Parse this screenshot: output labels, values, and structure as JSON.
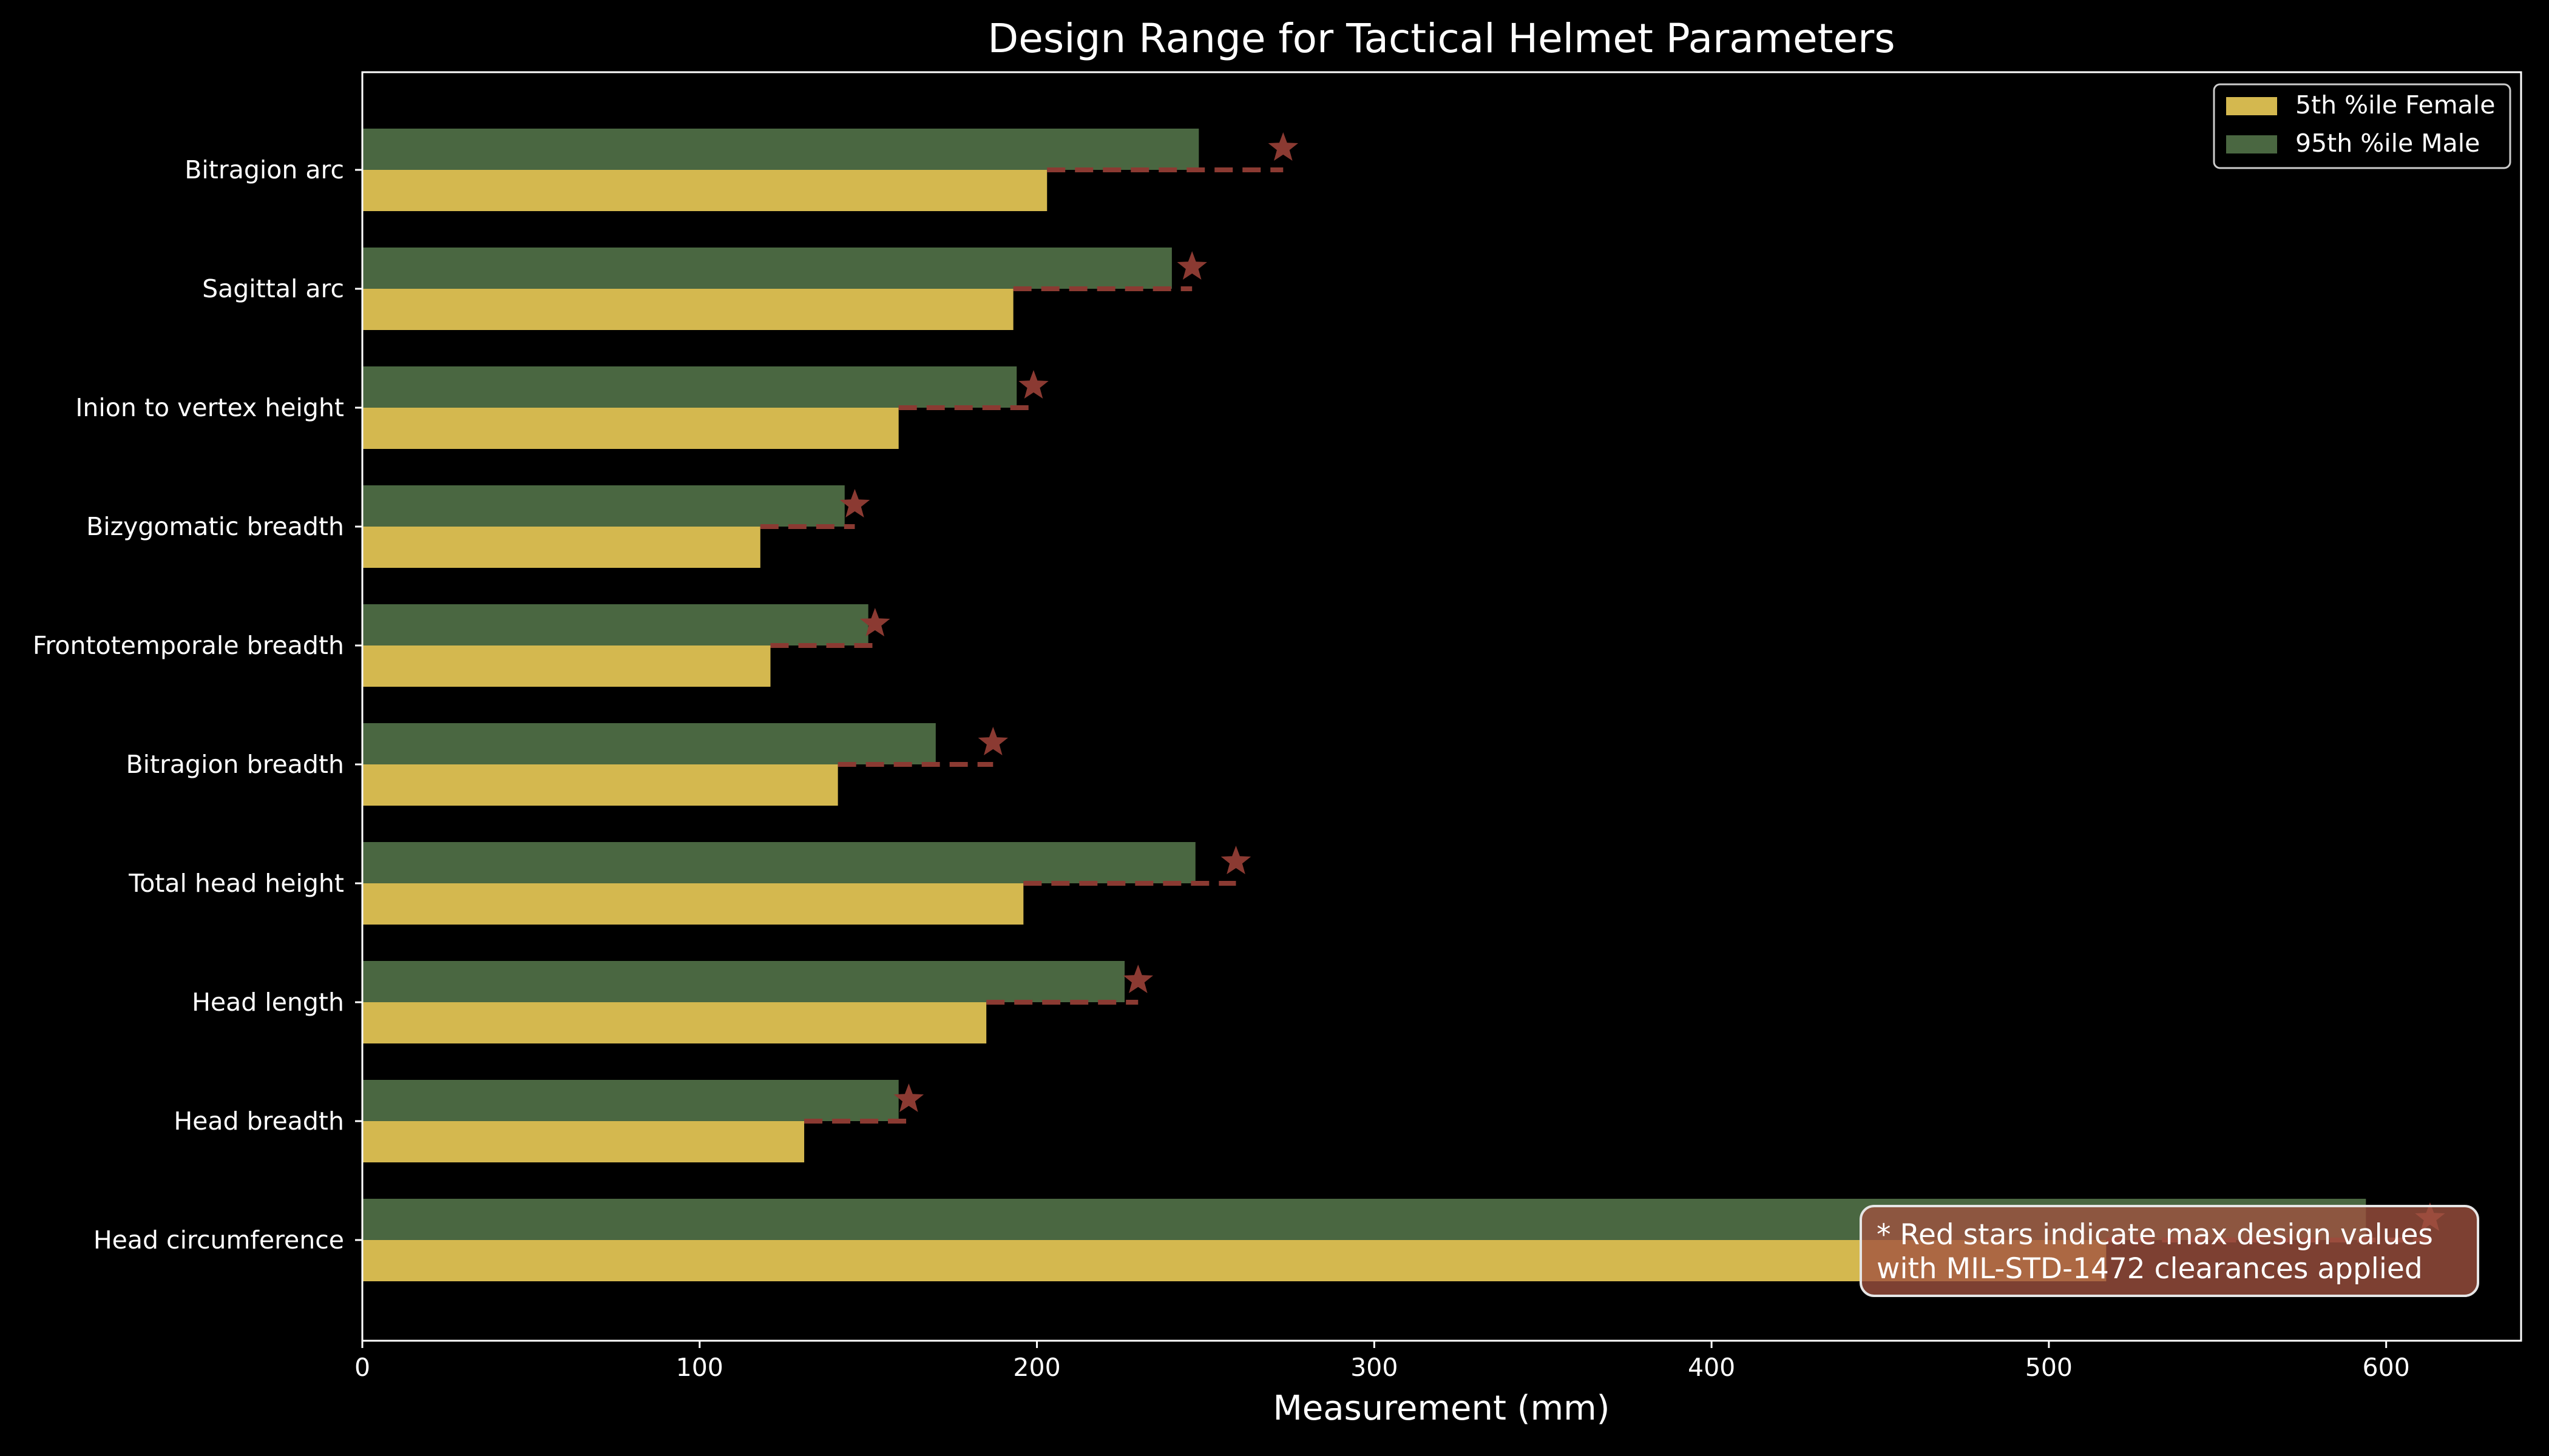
{
  "chart_data": {
    "type": "bar",
    "orientation": "horizontal",
    "title": "Design Range for Tactical Helmet Parameters",
    "xlabel": "Measurement (mm)",
    "ylabel": "",
    "xlim": [
      0,
      640
    ],
    "xticks": [
      0,
      100,
      200,
      300,
      400,
      500,
      600
    ],
    "grid": false,
    "legend_position": "top-right",
    "categories": [
      "Head circumference",
      "Head breadth",
      "Head length",
      "Total head height",
      "Bitragion breadth",
      "Frontotemporale breadth",
      "Bizygomatic breadth",
      "Inion to vertex height",
      "Sagittal arc",
      "Bitragion arc"
    ],
    "series": [
      {
        "name": "5th %ile Female",
        "color": "#d4b84f",
        "values": [
          517,
          131,
          185,
          196,
          141,
          121,
          118,
          159,
          193,
          203
        ]
      },
      {
        "name": "95th %ile Male",
        "color": "#4a6741",
        "values": [
          594,
          159,
          226,
          247,
          170,
          150,
          143,
          194,
          240,
          248
        ]
      }
    ],
    "max_design_values": {
      "marker": "star",
      "color": "#8b3a32",
      "values": [
        613,
        162,
        230,
        259,
        187,
        152,
        146,
        199,
        246,
        273
      ]
    },
    "annotation": {
      "line1": "* Red stars indicate max design values",
      "line2": "with MIL-STD-1472 clearances applied"
    }
  }
}
